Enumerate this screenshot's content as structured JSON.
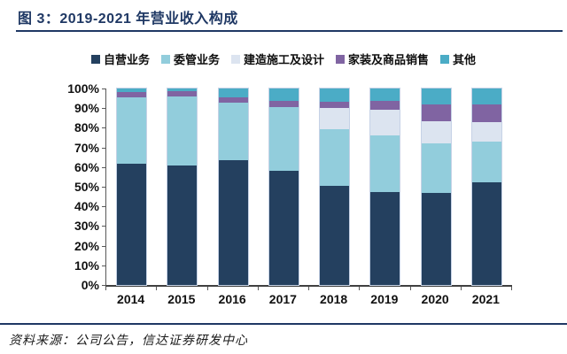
{
  "figure": {
    "title": "图 3：2019-2021 年营业收入构成",
    "source": "资料来源：公司公告，信达证券研发中心"
  },
  "colors": {
    "title_navy": "#1F3864",
    "axis_line": "#595959",
    "label_text": "#111111"
  },
  "chart_data": {
    "type": "bar",
    "stacked": true,
    "unit": "%",
    "title": "2019-2021 年营业收入构成",
    "categories": [
      "2014",
      "2015",
      "2016",
      "2017",
      "2018",
      "2019",
      "2020",
      "2021"
    ],
    "series": [
      {
        "name": "自营业务",
        "color": "#24405F",
        "values": [
          61.5,
          61.0,
          63.4,
          58.0,
          50.5,
          47.3,
          46.8,
          52.3
        ]
      },
      {
        "name": "委管业务",
        "color": "#92CDDC",
        "values": [
          34.0,
          34.8,
          29.3,
          32.5,
          29.0,
          28.9,
          25.2,
          20.9
        ]
      },
      {
        "name": "建造施工及设计",
        "color": "#DCE4F0",
        "values": [
          0.0,
          0.0,
          0.0,
          0.0,
          10.7,
          13.2,
          11.3,
          9.7
        ]
      },
      {
        "name": "家装及商品销售",
        "color": "#8064A2",
        "values": [
          2.6,
          2.7,
          2.8,
          3.2,
          3.0,
          4.1,
          8.8,
          8.8
        ]
      },
      {
        "name": "其他",
        "color": "#4BACC6",
        "values": [
          1.9,
          1.5,
          4.5,
          6.3,
          6.8,
          6.5,
          7.9,
          8.3
        ]
      }
    ],
    "ylim": [
      0,
      100
    ],
    "yticks": [
      "0%",
      "10%",
      "20%",
      "30%",
      "40%",
      "50%",
      "60%",
      "70%",
      "80%",
      "90%",
      "100%"
    ],
    "legend_position": "top",
    "grid": false
  }
}
